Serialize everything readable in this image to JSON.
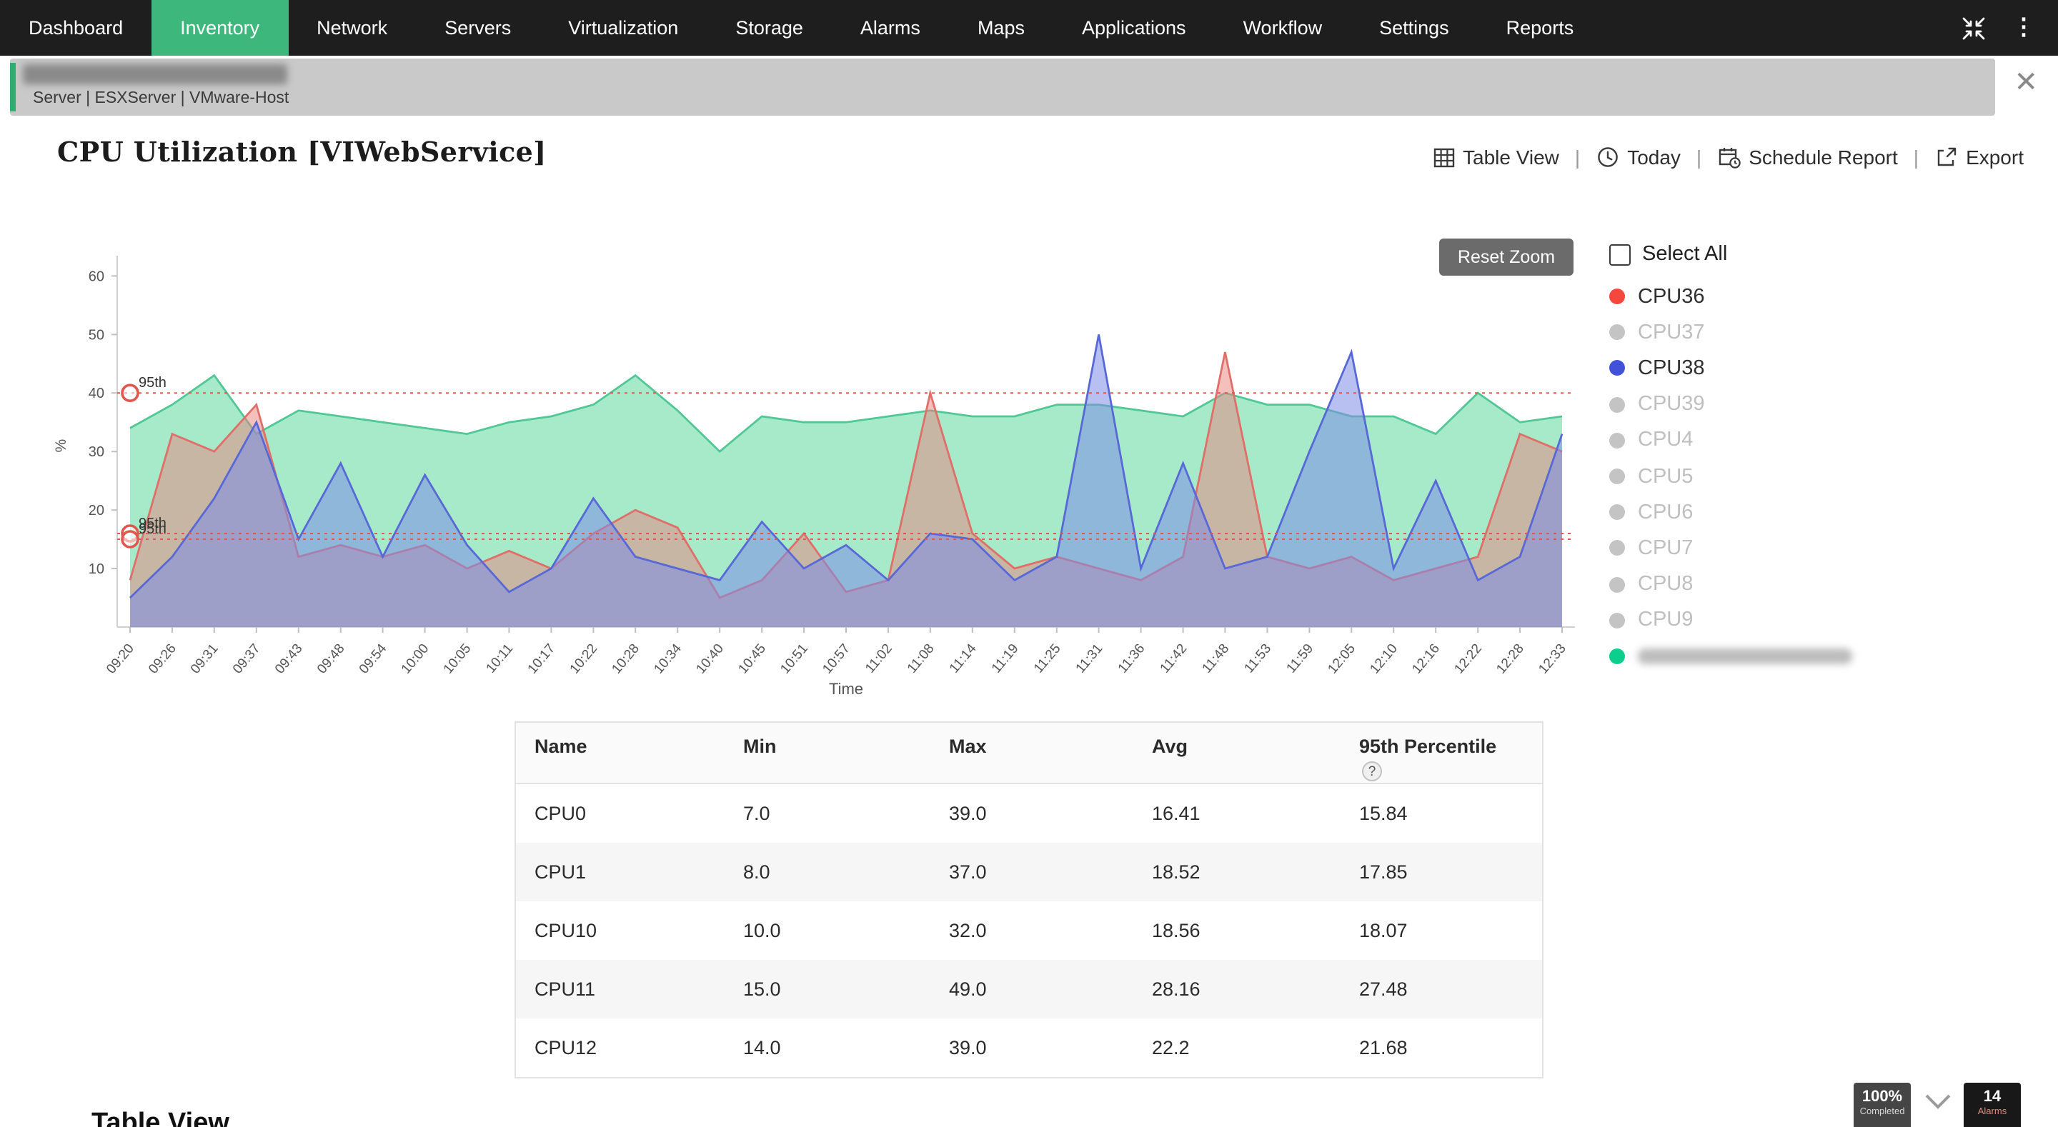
{
  "nav": {
    "items": [
      {
        "label": "Dashboard",
        "active": false
      },
      {
        "label": "Inventory",
        "active": true
      },
      {
        "label": "Network",
        "active": false
      },
      {
        "label": "Servers",
        "active": false
      },
      {
        "label": "Virtualization",
        "active": false
      },
      {
        "label": "Storage",
        "active": false
      },
      {
        "label": "Alarms",
        "active": false
      },
      {
        "label": "Maps",
        "active": false
      },
      {
        "label": "Applications",
        "active": false
      },
      {
        "label": "Workflow",
        "active": false
      },
      {
        "label": "Settings",
        "active": false
      },
      {
        "label": "Reports",
        "active": false
      }
    ],
    "active_color": "#3eb77c"
  },
  "breadcrumb": {
    "path": "Server | ESXServer | VMware-Host"
  },
  "page": {
    "title": "CPU Utilization [VIWebService]"
  },
  "toolbar": {
    "table_view": "Table View",
    "today": "Today",
    "schedule_report": "Schedule Report",
    "export": "Export",
    "separator": "|"
  },
  "chart": {
    "reset_zoom": "Reset Zoom"
  },
  "legend": {
    "select_all": "Select All",
    "items": [
      {
        "label": "CPU36",
        "color": "#f4473d",
        "state": "active"
      },
      {
        "label": "CPU37",
        "color": "#c4c4c4",
        "state": "inactive"
      },
      {
        "label": "CPU38",
        "color": "#4152d9",
        "state": "active"
      },
      {
        "label": "CPU39",
        "color": "#c4c4c4",
        "state": "inactive"
      },
      {
        "label": "CPU4",
        "color": "#c4c4c4",
        "state": "inactive"
      },
      {
        "label": "CPU5",
        "color": "#c4c4c4",
        "state": "inactive"
      },
      {
        "label": "CPU6",
        "color": "#c4c4c4",
        "state": "inactive"
      },
      {
        "label": "CPU7",
        "color": "#c4c4c4",
        "state": "inactive"
      },
      {
        "label": "CPU8",
        "color": "#c4c4c4",
        "state": "inactive"
      },
      {
        "label": "CPU9",
        "color": "#c4c4c4",
        "state": "inactive"
      },
      {
        "label": "",
        "color": "#0ccf8d",
        "state": "redacted"
      }
    ]
  },
  "chart_data": {
    "type": "area",
    "title": "CPU Utilization [VIWebService]",
    "xlabel": "Time",
    "ylabel": "%",
    "ylim": [
      0,
      62
    ],
    "yticks": [
      10,
      20,
      30,
      40,
      50,
      60
    ],
    "x": [
      "09:20",
      "09:26",
      "09:31",
      "09:37",
      "09:43",
      "09:48",
      "09:54",
      "10:00",
      "10:05",
      "10:11",
      "10:17",
      "10:22",
      "10:28",
      "10:34",
      "10:40",
      "10:45",
      "10:51",
      "10:57",
      "11:02",
      "11:08",
      "11:14",
      "11:19",
      "11:25",
      "11:31",
      "11:36",
      "11:42",
      "11:48",
      "11:53",
      "11:59",
      "12:05",
      "12:10",
      "12:16",
      "12:22",
      "12:28",
      "12:33"
    ],
    "series": [
      {
        "name": "",
        "color": "#52c796",
        "fill": "rgba(144,229,189,0.8)",
        "values": [
          34,
          38,
          43,
          33,
          37,
          36,
          35,
          34,
          33,
          35,
          36,
          38,
          43,
          37,
          30,
          36,
          35,
          35,
          36,
          37,
          36,
          36,
          38,
          38,
          37,
          36,
          40,
          38,
          38,
          36,
          36,
          33,
          40,
          35,
          36
        ]
      },
      {
        "name": "CPU36",
        "color": "#df6f68",
        "fill": "rgba(233,130,125,0.5)",
        "values": [
          8,
          33,
          30,
          38,
          12,
          14,
          12,
          14,
          10,
          13,
          10,
          16,
          20,
          17,
          5,
          8,
          16,
          6,
          8,
          40,
          16,
          10,
          12,
          10,
          8,
          12,
          47,
          12,
          10,
          12,
          8,
          10,
          12,
          33,
          30
        ]
      },
      {
        "name": "CPU38",
        "color": "#5868d6",
        "fill": "rgba(123,140,230,0.55)",
        "values": [
          5,
          12,
          22,
          35,
          15,
          28,
          12,
          26,
          14,
          6,
          10,
          22,
          12,
          10,
          8,
          18,
          10,
          14,
          8,
          16,
          15,
          8,
          12,
          50,
          10,
          28,
          10,
          12,
          30,
          47,
          10,
          25,
          8,
          12,
          33
        ]
      }
    ],
    "percentile_lines": [
      {
        "label": "95th",
        "value": 40
      },
      {
        "label": "95th",
        "value": 16
      },
      {
        "label": "95th",
        "value": 15
      }
    ],
    "legend_position": "right",
    "grid": false
  },
  "table": {
    "headers": [
      "Name",
      "Min",
      "Max",
      "Avg",
      "95th Percentile"
    ],
    "help_icon": "?",
    "rows": [
      [
        "CPU0",
        "7.0",
        "39.0",
        "16.41",
        "15.84"
      ],
      [
        "CPU1",
        "8.0",
        "37.0",
        "18.52",
        "17.85"
      ],
      [
        "CPU10",
        "10.0",
        "32.0",
        "18.56",
        "18.07"
      ],
      [
        "CPU11",
        "15.0",
        "49.0",
        "28.16",
        "27.48"
      ],
      [
        "CPU12",
        "14.0",
        "39.0",
        "22.2",
        "21.68"
      ]
    ]
  },
  "footer": {
    "section_title": "Table View",
    "progress_value": "100%",
    "progress_label": "Completed",
    "alarms_value": "14",
    "alarms_label": "Alarms"
  }
}
